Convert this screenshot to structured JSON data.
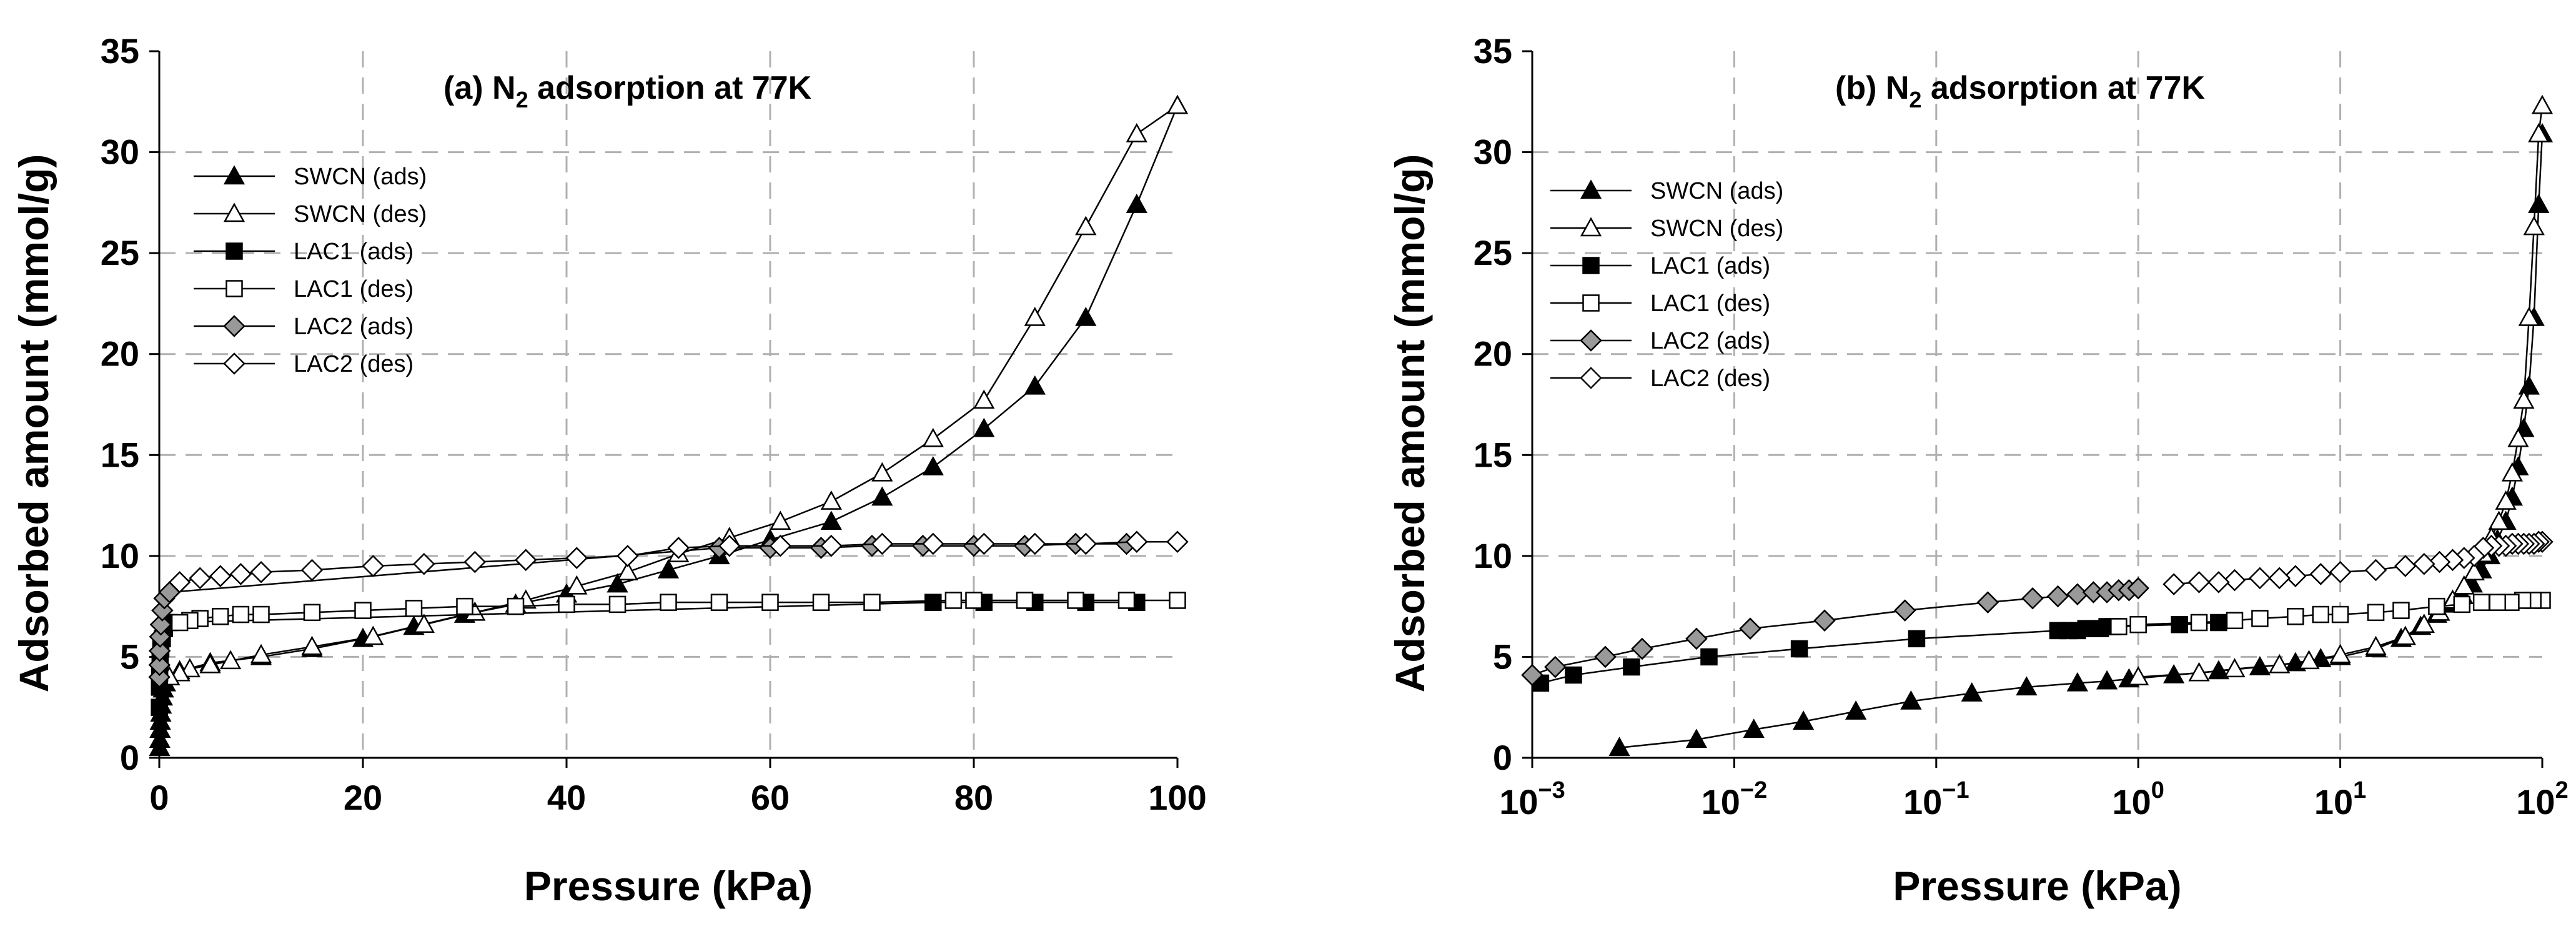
{
  "chart_data": [
    {
      "type": "scatter",
      "panel": "a",
      "title": "(a) N",
      "title_sub": "2",
      "title_rest": " adsorption at 77K",
      "xlabel": "Pressure (kPa)",
      "ylabel": "Adsorbed amount (mmol/g)",
      "xscale": "linear",
      "xlim": [
        0,
        100
      ],
      "ylim": [
        0,
        35
      ],
      "xticks": [
        "0",
        "20",
        "40",
        "60",
        "80",
        "100"
      ],
      "yticks": [
        "0",
        "5",
        "10",
        "15",
        "20",
        "25",
        "30",
        "35"
      ],
      "grid": true,
      "legend_position": "top-left",
      "series": [
        {
          "name": "SWCN (ads)",
          "marker": "triangle",
          "fill": "#000000",
          "x": [
            0.03,
            0.05,
            0.08,
            0.1,
            0.15,
            0.2,
            0.3,
            0.4,
            0.6,
            1,
            2,
            5,
            10,
            15,
            20,
            25,
            30,
            35,
            40,
            45,
            50,
            55,
            60,
            66,
            71,
            76,
            81,
            86,
            91,
            96,
            100
          ],
          "y": [
            0.5,
            0.9,
            1.4,
            1.8,
            2.2,
            2.6,
            3.0,
            3.4,
            3.7,
            4.0,
            4.3,
            4.7,
            5.0,
            5.4,
            5.9,
            6.5,
            7.1,
            7.6,
            8.1,
            8.6,
            9.3,
            10.0,
            10.8,
            11.7,
            12.9,
            14.4,
            16.3,
            18.4,
            21.8,
            27.4,
            32.3
          ]
        },
        {
          "name": "SWCN (des)",
          "marker": "triangle",
          "fill": "#ffffff",
          "x": [
            100,
            96,
            91,
            86,
            81,
            76,
            71,
            66,
            61,
            56,
            51,
            46,
            41,
            36,
            31,
            26,
            21,
            15,
            10,
            7,
            5,
            3,
            2,
            1
          ],
          "y": [
            32.3,
            30.9,
            26.3,
            21.8,
            17.7,
            15.8,
            14.1,
            12.7,
            11.7,
            10.9,
            10.1,
            9.2,
            8.5,
            7.8,
            7.2,
            6.6,
            6.0,
            5.5,
            5.1,
            4.8,
            4.6,
            4.4,
            4.2,
            4.0
          ]
        },
        {
          "name": "LAC1 (ads)",
          "marker": "square",
          "fill": "#000000",
          "x": [
            0.01,
            0.02,
            0.04,
            0.08,
            0.15,
            0.3,
            0.5,
            1,
            76,
            81,
            86,
            91,
            96
          ],
          "y": [
            2.5,
            3.5,
            4.2,
            4.9,
            5.4,
            5.9,
            6.4,
            6.7,
            7.7,
            7.7,
            7.7,
            7.7,
            7.7
          ]
        },
        {
          "name": "LAC1 (des)",
          "marker": "square",
          "fill": "#ffffff",
          "x": [
            100,
            95,
            90,
            85,
            80,
            78,
            70,
            65,
            60,
            55,
            50,
            45,
            40,
            35,
            30,
            25,
            20,
            15,
            10,
            8,
            6,
            4,
            3,
            2
          ],
          "y": [
            7.8,
            7.8,
            7.8,
            7.8,
            7.8,
            7.8,
            7.7,
            7.7,
            7.7,
            7.7,
            7.7,
            7.6,
            7.6,
            7.5,
            7.5,
            7.4,
            7.3,
            7.2,
            7.1,
            7.1,
            7.0,
            6.9,
            6.8,
            6.7
          ]
        },
        {
          "name": "LAC2 (ads)",
          "marker": "diamond",
          "fill": "#999999",
          "x": [
            0.01,
            0.02,
            0.04,
            0.08,
            0.15,
            0.3,
            0.5,
            1,
            55,
            60,
            65,
            70,
            75,
            80,
            85,
            90,
            95
          ],
          "y": [
            4.0,
            4.6,
            5.3,
            6.0,
            6.6,
            7.3,
            7.9,
            8.2,
            10.4,
            10.4,
            10.4,
            10.5,
            10.5,
            10.5,
            10.5,
            10.6,
            10.6
          ]
        },
        {
          "name": "LAC2 (des)",
          "marker": "diamond",
          "fill": "#ffffff",
          "x": [
            100,
            96,
            91,
            86,
            81,
            76,
            71,
            66,
            61,
            56,
            51,
            46,
            41,
            36,
            31,
            26,
            21,
            15,
            10,
            8,
            6,
            4,
            2
          ],
          "y": [
            10.7,
            10.7,
            10.6,
            10.6,
            10.6,
            10.6,
            10.6,
            10.5,
            10.5,
            10.5,
            10.4,
            10.0,
            9.9,
            9.8,
            9.7,
            9.6,
            9.5,
            9.3,
            9.2,
            9.1,
            9.0,
            8.9,
            8.7
          ]
        }
      ]
    },
    {
      "type": "scatter",
      "panel": "b",
      "title": "(b) N",
      "title_sub": "2",
      "title_rest": " adsorption at 77K",
      "xlabel": "Pressure (kPa)",
      "ylabel": "Adsorbed amount (mmol/g)",
      "xscale": "log",
      "xlim": [
        0.001,
        100
      ],
      "ylim": [
        0,
        35
      ],
      "xticks": [
        {
          "base": "10",
          "exp": "−3"
        },
        {
          "base": "10",
          "exp": "−2"
        },
        {
          "base": "10",
          "exp": "−1"
        },
        {
          "base": "10",
          "exp": "0"
        },
        {
          "base": "10",
          "exp": "1"
        },
        {
          "base": "10",
          "exp": "2"
        }
      ],
      "yticks": [
        "0",
        "5",
        "10",
        "15",
        "20",
        "25",
        "30",
        "35"
      ],
      "grid": true,
      "legend_position": "top-left",
      "series": [
        {
          "name": "SWCN (ads)",
          "marker": "triangle",
          "fill": "#000000",
          "x": [
            0.0027,
            0.0065,
            0.0125,
            0.022,
            0.04,
            0.075,
            0.15,
            0.28,
            0.5,
            0.7,
            0.9,
            1.5,
            2.5,
            4,
            6,
            8,
            10,
            15,
            20,
            25,
            30,
            35,
            40,
            45,
            50,
            55,
            60,
            66,
            71,
            76,
            81,
            86,
            91,
            96,
            100
          ],
          "y": [
            0.5,
            0.9,
            1.4,
            1.8,
            2.3,
            2.8,
            3.2,
            3.5,
            3.7,
            3.8,
            3.9,
            4.1,
            4.3,
            4.5,
            4.7,
            4.9,
            5.0,
            5.4,
            5.9,
            6.5,
            7.1,
            7.6,
            8.1,
            8.6,
            9.3,
            10.0,
            10.8,
            11.7,
            12.9,
            14.4,
            16.3,
            18.4,
            21.8,
            27.4,
            30.9
          ]
        },
        {
          "name": "SWCN (des)",
          "marker": "triangle",
          "fill": "#ffffff",
          "x": [
            100,
            96,
            91,
            86,
            81,
            76,
            71,
            66,
            61,
            56,
            51,
            46,
            41,
            36,
            31,
            26,
            21,
            15,
            10,
            7,
            5,
            3,
            2,
            1
          ],
          "y": [
            32.3,
            30.9,
            26.3,
            21.8,
            17.7,
            15.8,
            14.1,
            12.7,
            11.7,
            10.9,
            10.1,
            9.2,
            8.5,
            7.8,
            7.2,
            6.6,
            6.0,
            5.5,
            5.1,
            4.8,
            4.6,
            4.4,
            4.2,
            4.0
          ]
        },
        {
          "name": "LAC1 (ads)",
          "marker": "square",
          "fill": "#000000",
          "x": [
            0.0011,
            0.0016,
            0.0031,
            0.0075,
            0.021,
            0.08,
            0.4,
            0.45,
            0.5,
            0.55,
            0.6,
            0.65,
            0.7,
            0.75,
            1.6,
            2.5
          ],
          "y": [
            3.7,
            4.1,
            4.5,
            5.0,
            5.4,
            5.9,
            6.3,
            6.3,
            6.3,
            6.4,
            6.4,
            6.4,
            6.5,
            6.5,
            6.6,
            6.7
          ]
        },
        {
          "name": "LAC1 (des)",
          "marker": "square",
          "fill": "#ffffff",
          "x": [
            100,
            90,
            80,
            70,
            60,
            50,
            40,
            30,
            20,
            15,
            10,
            8,
            6,
            4,
            3,
            2,
            1,
            0.8
          ],
          "y": [
            7.8,
            7.8,
            7.8,
            7.7,
            7.7,
            7.7,
            7.6,
            7.5,
            7.3,
            7.2,
            7.1,
            7.1,
            7.0,
            6.9,
            6.8,
            6.7,
            6.6,
            6.5
          ]
        },
        {
          "name": "LAC2 (ads)",
          "marker": "diamond",
          "fill": "#999999",
          "x": [
            0.001,
            0.0013,
            0.0023,
            0.0035,
            0.0065,
            0.012,
            0.028,
            0.07,
            0.18,
            0.3,
            0.4,
            0.5,
            0.6,
            0.7,
            0.8,
            0.9,
            1
          ],
          "y": [
            4.1,
            4.5,
            5.0,
            5.4,
            5.9,
            6.4,
            6.8,
            7.3,
            7.7,
            7.9,
            8.0,
            8.1,
            8.2,
            8.2,
            8.3,
            8.3,
            8.4
          ]
        },
        {
          "name": "LAC2 (des)",
          "marker": "diamond",
          "fill": "#ffffff",
          "x": [
            100,
            96,
            91,
            86,
            81,
            76,
            71,
            66,
            61,
            56,
            51,
            46,
            41,
            36,
            31,
            26,
            21,
            15,
            10,
            8,
            6,
            5,
            4,
            3,
            2.5,
            2,
            1.5
          ],
          "y": [
            10.7,
            10.7,
            10.6,
            10.6,
            10.6,
            10.6,
            10.6,
            10.5,
            10.5,
            10.5,
            10.4,
            10.0,
            9.9,
            9.8,
            9.7,
            9.6,
            9.5,
            9.3,
            9.2,
            9.1,
            9.0,
            8.9,
            8.9,
            8.8,
            8.7,
            8.7,
            8.6
          ]
        }
      ]
    }
  ]
}
